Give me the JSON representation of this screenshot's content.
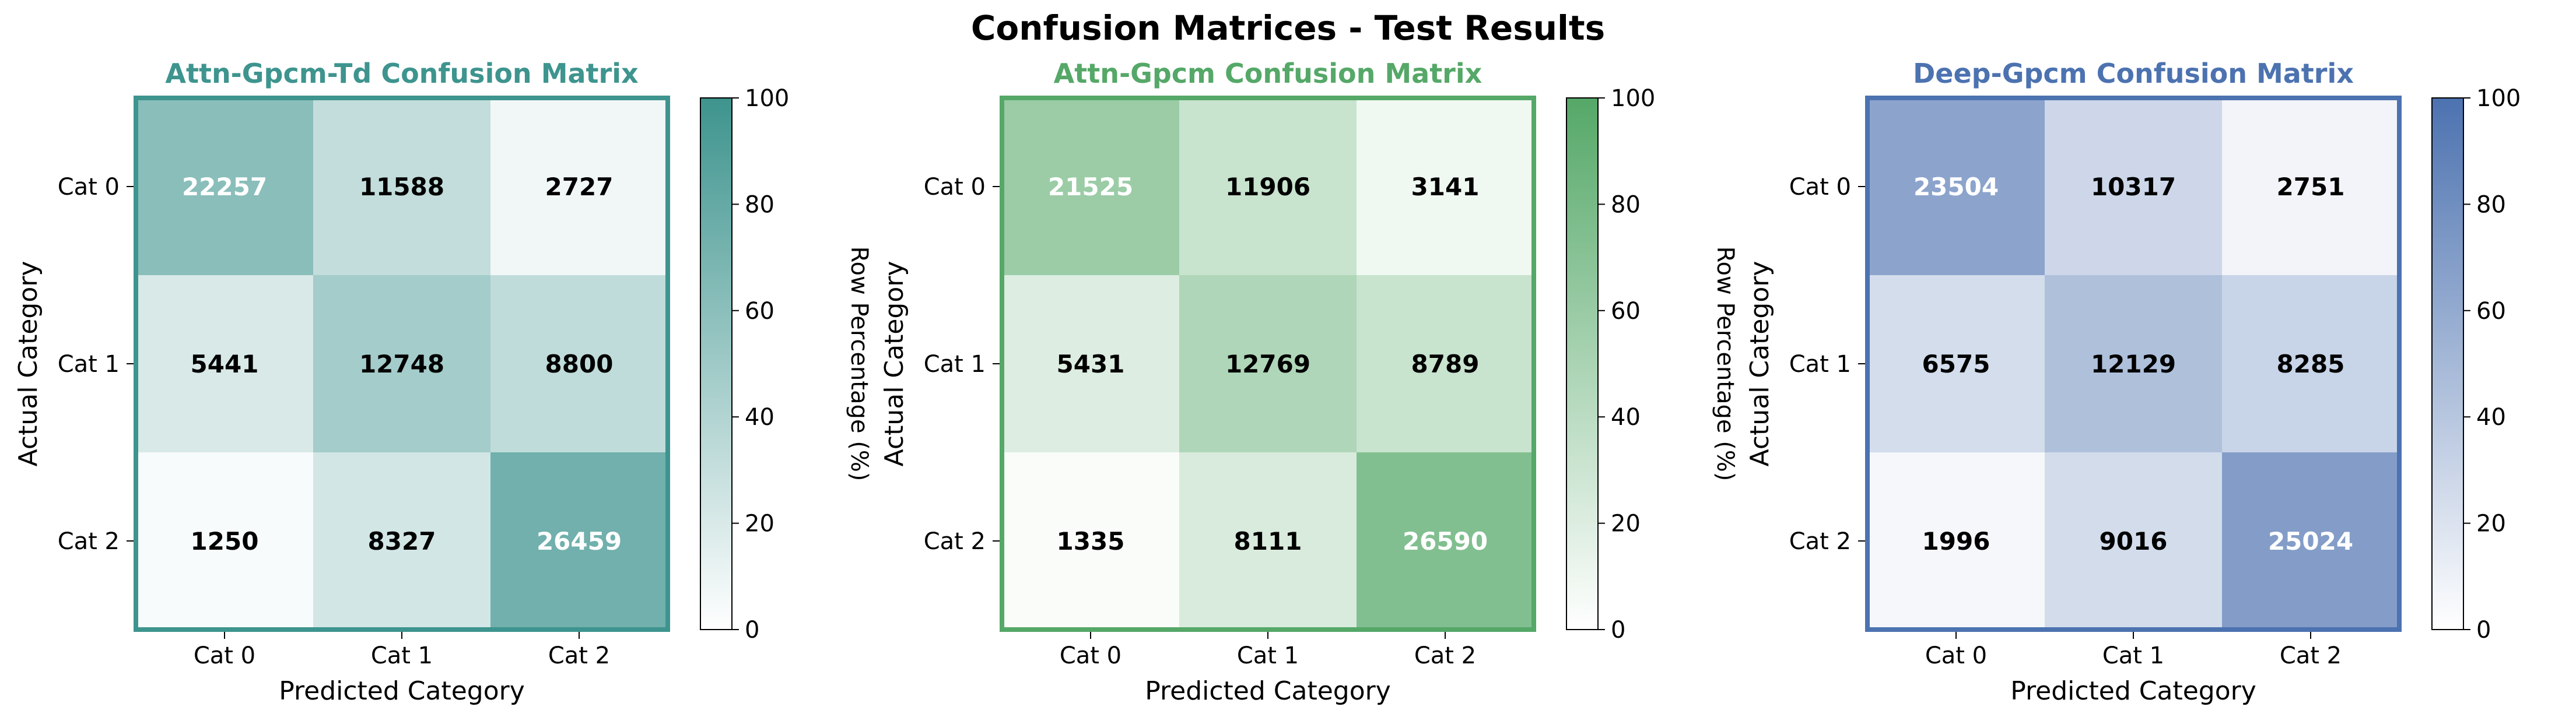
{
  "suptitle": "Confusion Matrices - Test Results",
  "chart_data": [
    {
      "type": "heatmap",
      "title": "Attn-Gpcm-Td Confusion Matrix",
      "title_color": "#3e948e",
      "colormap_max": "#3e948e",
      "xlabel": "Predicted Category",
      "ylabel": "Actual Category",
      "x_categories": [
        "Cat 0",
        "Cat 1",
        "Cat 2"
      ],
      "y_categories": [
        "Cat 0",
        "Cat 1",
        "Cat 2"
      ],
      "matrix": [
        [
          22257,
          11588,
          2727
        ],
        [
          5441,
          12748,
          8800
        ],
        [
          1250,
          8327,
          26459
        ]
      ],
      "colorbar": {
        "label": "Row Percentage (%)",
        "range": [
          0,
          100
        ],
        "ticks": [
          "0",
          "20",
          "40",
          "60",
          "80",
          "100"
        ]
      }
    },
    {
      "type": "heatmap",
      "title": "Attn-Gpcm Confusion Matrix",
      "title_color": "#55a868",
      "colormap_max": "#55a868",
      "xlabel": "Predicted Category",
      "ylabel": "Actual Category",
      "x_categories": [
        "Cat 0",
        "Cat 1",
        "Cat 2"
      ],
      "y_categories": [
        "Cat 0",
        "Cat 1",
        "Cat 2"
      ],
      "matrix": [
        [
          21525,
          11906,
          3141
        ],
        [
          5431,
          12769,
          8789
        ],
        [
          1335,
          8111,
          26590
        ]
      ],
      "colorbar": {
        "label": "Row Percentage (%)",
        "range": [
          0,
          100
        ],
        "ticks": [
          "0",
          "20",
          "40",
          "60",
          "80",
          "100"
        ]
      }
    },
    {
      "type": "heatmap",
      "title": "Deep-Gpcm Confusion Matrix",
      "title_color": "#4c72b0",
      "colormap_max": "#4c72b0",
      "xlabel": "Predicted Category",
      "ylabel": "Actual Category",
      "x_categories": [
        "Cat 0",
        "Cat 1",
        "Cat 2"
      ],
      "y_categories": [
        "Cat 0",
        "Cat 1",
        "Cat 2"
      ],
      "matrix": [
        [
          23504,
          10317,
          2751
        ],
        [
          6575,
          12129,
          8285
        ],
        [
          1996,
          9016,
          25024
        ]
      ],
      "colorbar": {
        "label": "Row Percentage (%)",
        "range": [
          0,
          100
        ],
        "ticks": [
          "0",
          "20",
          "40",
          "60",
          "80",
          "100"
        ]
      }
    }
  ]
}
